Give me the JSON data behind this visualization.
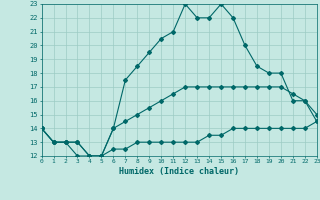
{
  "xlabel": "Humidex (Indice chaleur)",
  "bg_color": "#c5e8e2",
  "grid_color": "#9dccc4",
  "line_color": "#006868",
  "xlim": [
    0,
    23
  ],
  "ylim": [
    12,
    23
  ],
  "xticks": [
    0,
    1,
    2,
    3,
    4,
    5,
    6,
    7,
    8,
    9,
    10,
    11,
    12,
    13,
    14,
    15,
    16,
    17,
    18,
    19,
    20,
    21,
    22,
    23
  ],
  "yticks": [
    12,
    13,
    14,
    15,
    16,
    17,
    18,
    19,
    20,
    21,
    22,
    23
  ],
  "line1_x": [
    0,
    1,
    2,
    3,
    4,
    5,
    6,
    7,
    8,
    9,
    10,
    11,
    12,
    13,
    14,
    15,
    16,
    17,
    18,
    19,
    20,
    21,
    22,
    23
  ],
  "line1_y": [
    14,
    13,
    13,
    12,
    12,
    12,
    14,
    17.5,
    18.5,
    19.5,
    20.5,
    21,
    23,
    22,
    22,
    23,
    22,
    20,
    18.5,
    18,
    18,
    16,
    16,
    14.5
  ],
  "line2_x": [
    0,
    1,
    2,
    3,
    4,
    5,
    6,
    7,
    8,
    9,
    10,
    11,
    12,
    13,
    14,
    15,
    16,
    17,
    18,
    19,
    20,
    21,
    22,
    23
  ],
  "line2_y": [
    14,
    13,
    13,
    13,
    12,
    12,
    14,
    14.5,
    15,
    15.5,
    16,
    16.5,
    17,
    17,
    17,
    17,
    17,
    17,
    17,
    17,
    17,
    16.5,
    16,
    15
  ],
  "line3_x": [
    0,
    1,
    2,
    3,
    4,
    5,
    6,
    7,
    8,
    9,
    10,
    11,
    12,
    13,
    14,
    15,
    16,
    17,
    18,
    19,
    20,
    21,
    22,
    23
  ],
  "line3_y": [
    14,
    13,
    13,
    13,
    12,
    12,
    12.5,
    12.5,
    13,
    13,
    13,
    13,
    13,
    13,
    13.5,
    13.5,
    14,
    14,
    14,
    14,
    14,
    14,
    14,
    14.5
  ]
}
